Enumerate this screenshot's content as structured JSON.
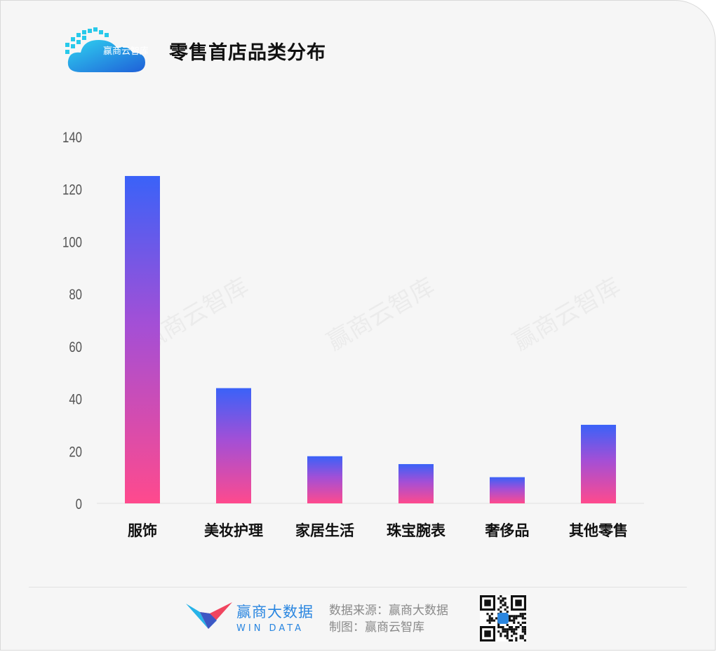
{
  "header": {
    "logo_text": "赢商云智库",
    "title": "零售首店品类分布"
  },
  "watermark": "赢商云智库",
  "chart_data": {
    "type": "bar",
    "title": "零售首店品类分布",
    "categories": [
      "服饰",
      "美妆护理",
      "家居生活",
      "珠宝腕表",
      "奢侈品",
      "其他零售"
    ],
    "values": [
      125,
      44,
      18,
      15,
      10,
      30
    ],
    "ylim": [
      0,
      140
    ],
    "yticks": [
      0,
      20,
      40,
      60,
      80,
      100,
      120,
      140
    ],
    "xlabel": "",
    "ylabel": "",
    "grid": false,
    "colors": {
      "bar_top": "#3a62f8",
      "bar_mid": "#a34fd6",
      "bar_bottom": "#ff4a8d"
    }
  },
  "footer": {
    "brand_cn": "赢商大数据",
    "brand_en": "WIN DATA",
    "source_line": "数据来源：赢商大数据",
    "maker_line": "制图：赢商云智库"
  }
}
